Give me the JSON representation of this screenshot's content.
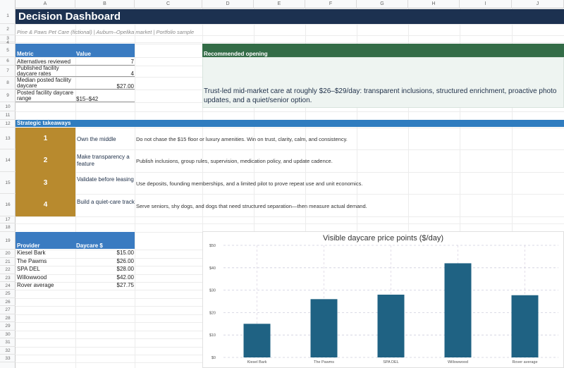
{
  "sheet": {
    "columns": [
      "A",
      "B",
      "C",
      "D",
      "E",
      "F",
      "G",
      "H",
      "I",
      "J"
    ],
    "rows": [
      "1",
      "2",
      "3",
      "4",
      "5",
      "6",
      "7",
      "8",
      "9",
      "10",
      "11",
      "12",
      "13",
      "14",
      "15",
      "16",
      "17",
      "18",
      "19",
      "20",
      "21",
      "22",
      "23",
      "24",
      "25",
      "26",
      "27",
      "28",
      "29",
      "30",
      "31",
      "32",
      "33"
    ]
  },
  "header": {
    "title": "Decision Dashboard",
    "subtitle": "Pine & Paws Pet Care (fictional) | Auburn–Opelika market | Portfolio sample"
  },
  "metrics": {
    "col_metric": "Metric",
    "col_value": "Value",
    "rows": [
      {
        "label": "Alternatives reviewed",
        "value": "7"
      },
      {
        "label": "Published facility daycare rates",
        "value": "4"
      },
      {
        "label": "Median posted facility daycare",
        "value": "$27.00"
      },
      {
        "label": "Posted facility daycare range",
        "value": "$15–$42"
      }
    ]
  },
  "recommendation": {
    "heading": "Recommended opening",
    "text": "Trust-led mid-market care at roughly $26–$29/day: transparent inclusions, structured enrichment, proactive photo updates, and a quiet/senior option."
  },
  "strategy": {
    "heading": "Strategic takeaways",
    "items": [
      {
        "num": "1",
        "title": "Own the middle",
        "desc": "Do not chase the $15 floor or luxury amenities. Win on trust, clarity, calm, and consistency."
      },
      {
        "num": "2",
        "title": "Make transparency a feature",
        "desc": "Publish inclusions, group rules, supervision, medication policy, and update cadence."
      },
      {
        "num": "3",
        "title": "Validate before leasing",
        "desc": "Use deposits, founding memberships, and a limited pilot to prove repeat use and unit economics."
      },
      {
        "num": "4",
        "title": "Build a quiet-care track",
        "desc": "Serve seniors, shy dogs, and dogs that need structured separation—then measure actual demand."
      }
    ]
  },
  "providers": {
    "col_provider": "Provider",
    "col_rate": "Daycare $",
    "rows": [
      {
        "name": "Kiesel Bark",
        "rate": "$15.00"
      },
      {
        "name": "The Pawms",
        "rate": "$26.00"
      },
      {
        "name": "SPA DEL",
        "rate": "$28.00"
      },
      {
        "name": "Willowwood",
        "rate": "$42.00"
      },
      {
        "name": "Rover average",
        "rate": "$27.75"
      }
    ]
  },
  "colors": {
    "title_bar": "#1c3150",
    "table_header": "#3a7bc1",
    "rec_header": "#336c47",
    "badge": "#b88a2e",
    "bar": "#1f6283"
  },
  "chart_data": {
    "type": "bar",
    "title": "Visible daycare price points ($/day)",
    "categories": [
      "Kiesel Bark",
      "The Pawms",
      "SPA DEL",
      "Willowwood",
      "Rover average"
    ],
    "values": [
      15,
      26,
      28,
      42,
      27.75
    ],
    "ylim": [
      0,
      50
    ],
    "yticks": [
      "$0",
      "$10",
      "$20",
      "$30",
      "$40",
      "$50"
    ],
    "xlabel": "",
    "ylabel": "",
    "grid": true
  }
}
